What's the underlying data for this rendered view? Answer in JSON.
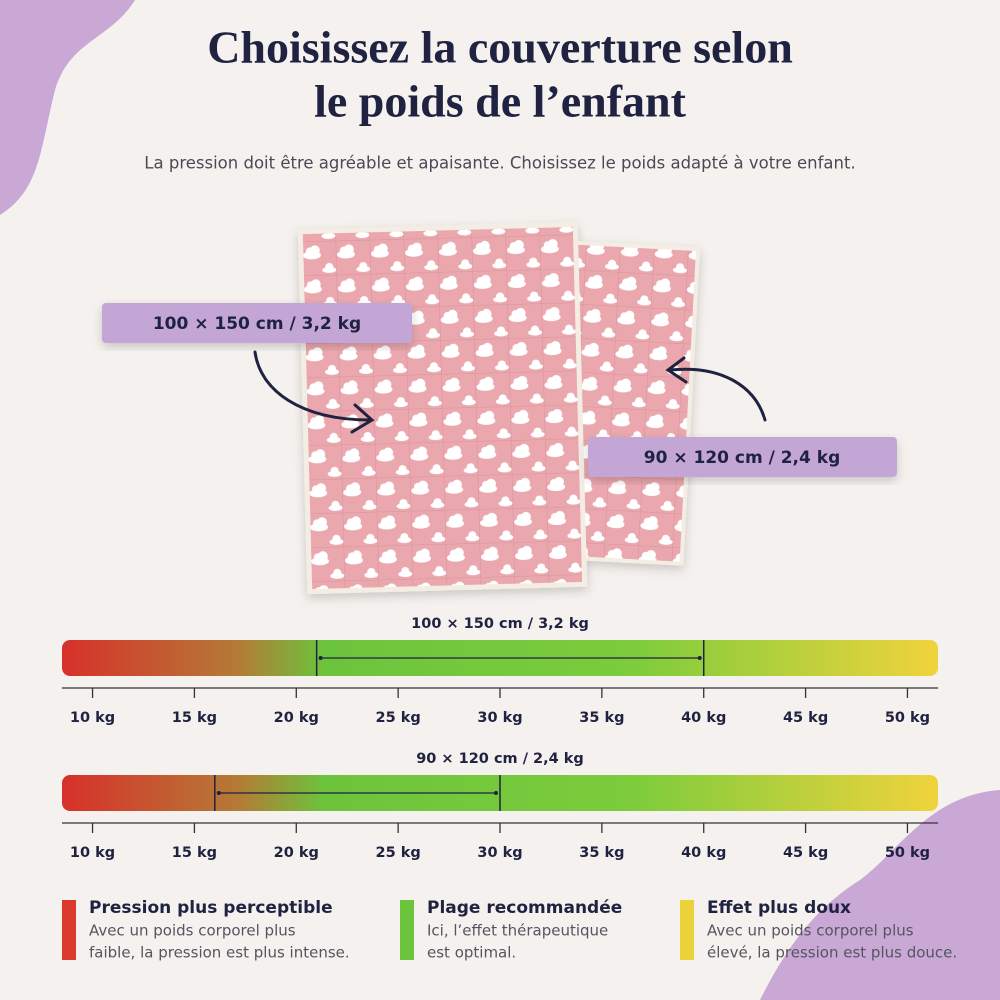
{
  "header": {
    "title_lines": [
      "Choisissez la couverture selon",
      "le poids de l’enfant"
    ],
    "subtitle": "La pression doit être agréable et apaisante. Choisissez le poids adapté à votre enfant."
  },
  "blankets": [
    {
      "label": "100 × 150 cm / 3,2 kg"
    },
    {
      "label": "90 × 120 cm / 2,4 kg"
    }
  ],
  "axis": {
    "xlim": [
      8.5,
      51.5
    ],
    "ticks": [
      {
        "value": 10,
        "label": "10 kg"
      },
      {
        "value": 15,
        "label": "15 kg"
      },
      {
        "value": 20,
        "label": "20 kg"
      },
      {
        "value": 25,
        "label": "25 kg"
      },
      {
        "value": 30,
        "label": "30 kg"
      },
      {
        "value": 35,
        "label": "35 kg"
      },
      {
        "value": 40,
        "label": "40 kg"
      },
      {
        "value": 45,
        "label": "45 kg"
      },
      {
        "value": 50,
        "label": "50 kg"
      }
    ]
  },
  "scales": [
    {
      "title": "100 × 150 cm / 3,2 kg",
      "range": [
        21,
        40
      ]
    },
    {
      "title": "90 × 120 cm / 2,4 kg",
      "range": [
        16,
        30
      ]
    }
  ],
  "legend": [
    {
      "title": "Pression plus perceptible",
      "color": "#d93a2b",
      "lines": [
        "Avec un poids corporel plus",
        "faible, la pression est plus intense."
      ]
    },
    {
      "title": "Plage recommandée",
      "color": "#6cc43c",
      "lines": [
        "Ici, l’effet thérapeutique",
        "est optimal."
      ]
    },
    {
      "title": "Effet plus doux",
      "color": "#ecd23a",
      "lines": [
        "Avec un poids corporel plus",
        "élevé, la pression est plus douce."
      ]
    }
  ]
}
